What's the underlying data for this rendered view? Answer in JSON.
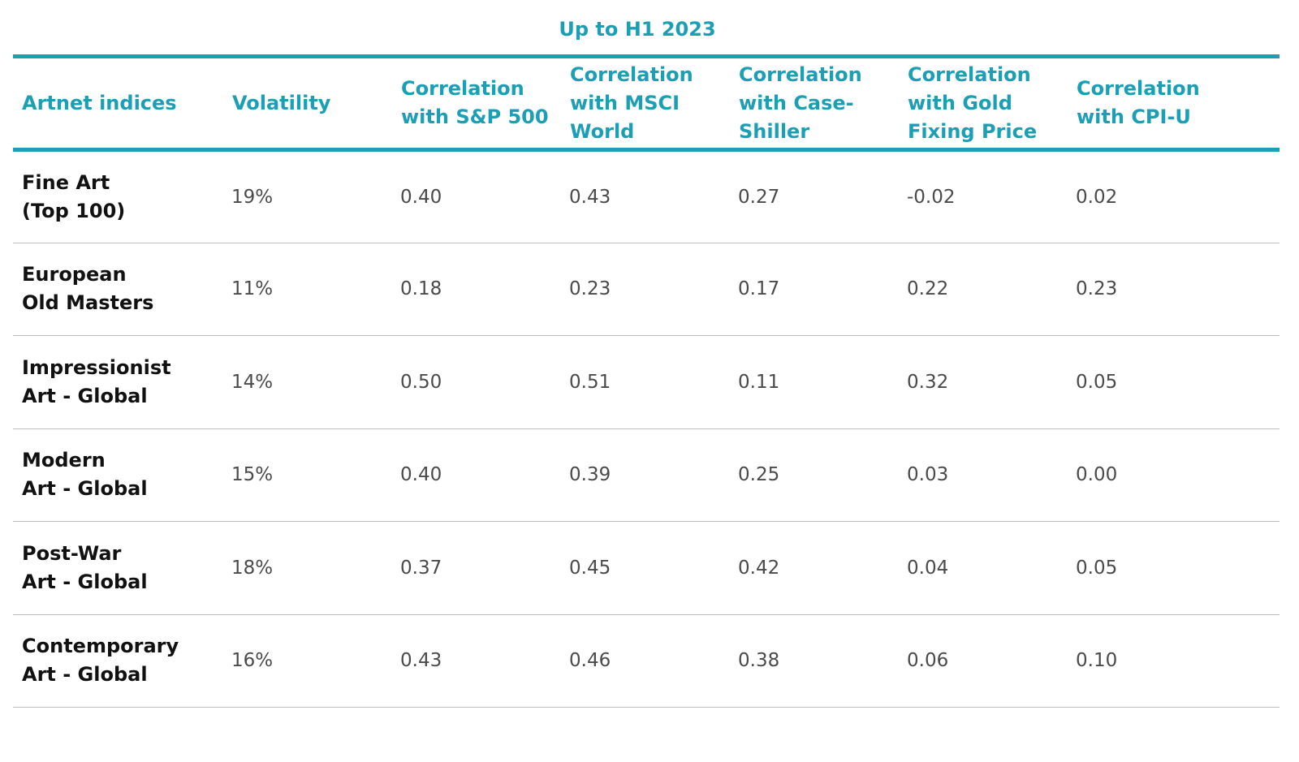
{
  "caption": "Up to H1 2023",
  "colors": {
    "accent": "#1a9fb5",
    "row_divider": "#bdbdbd",
    "index_text": "#111111",
    "value_text": "#4a4a4a"
  },
  "headers": [
    "Artnet indices",
    "Volatility",
    "Correlation\nwith S&P 500",
    "Correlation\nwith MSCI\nWorld",
    "Correlation\nwith Case-\nShiller",
    "Correlation\nwith Gold\nFixing Price",
    "Correlation\nwith CPI-U"
  ],
  "rows": [
    {
      "index": "Fine Art\n(Top 100)",
      "volatility": "19%",
      "sp500": "0.40",
      "msci": "0.43",
      "case_shiller": "0.27",
      "gold": "-0.02",
      "cpi_u": "0.02"
    },
    {
      "index": "European\nOld Masters",
      "volatility": "11%",
      "sp500": "0.18",
      "msci": "0.23",
      "case_shiller": "0.17",
      "gold": "0.22",
      "cpi_u": "0.23"
    },
    {
      "index": "Impressionist\nArt - Global",
      "volatility": "14%",
      "sp500": "0.50",
      "msci": "0.51",
      "case_shiller": "0.11",
      "gold": "0.32",
      "cpi_u": "0.05"
    },
    {
      "index": "Modern\nArt - Global",
      "volatility": "15%",
      "sp500": "0.40",
      "msci": "0.39",
      "case_shiller": "0.25",
      "gold": "0.03",
      "cpi_u": "0.00"
    },
    {
      "index": "Post-War\nArt - Global",
      "volatility": "18%",
      "sp500": "0.37",
      "msci": "0.45",
      "case_shiller": "0.42",
      "gold": "0.04",
      "cpi_u": "0.05"
    },
    {
      "index": "Contemporary\nArt - Global",
      "volatility": "16%",
      "sp500": "0.43",
      "msci": "0.46",
      "case_shiller": "0.38",
      "gold": "0.06",
      "cpi_u": "0.10"
    }
  ]
}
